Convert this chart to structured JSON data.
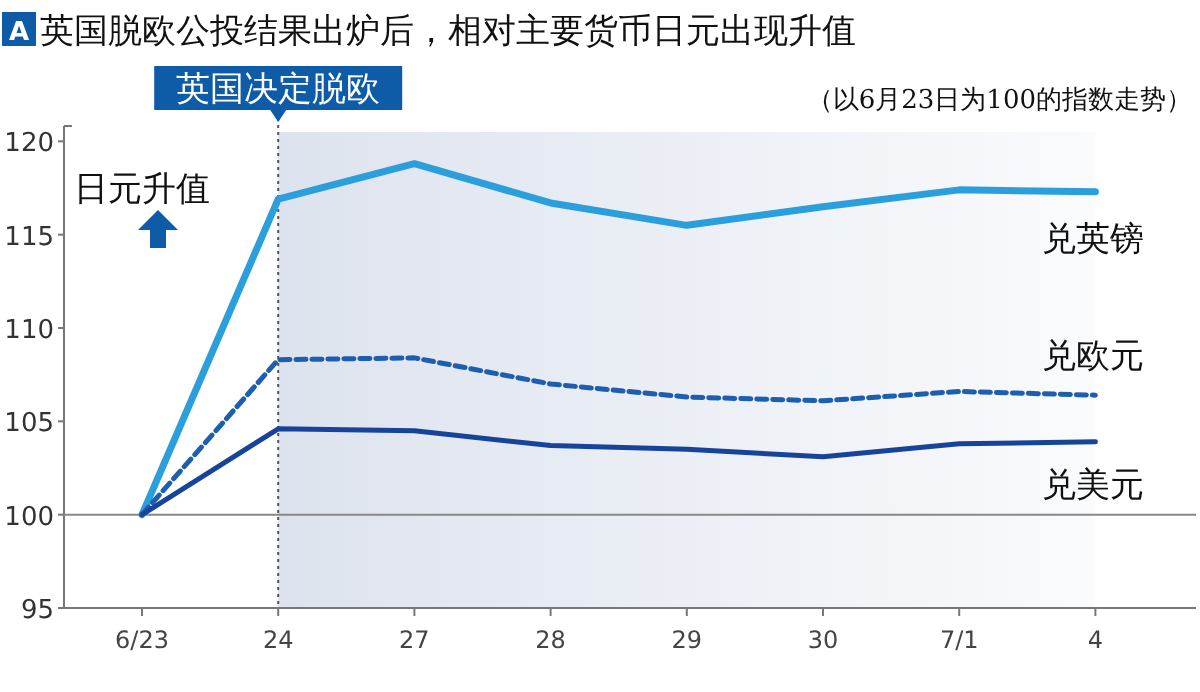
{
  "chart_data": {
    "type": "line",
    "title": "英国脱欧公投结果出炉后，相对主要货币日元出现升值",
    "subtitle": "（以6月23日为100的指数走势）",
    "categories": [
      "6/23",
      "24",
      "27",
      "28",
      "29",
      "30",
      "7/1",
      "4"
    ],
    "series": [
      {
        "name": "兑英镑",
        "color": "#2a9fdc",
        "line_style": "solid",
        "values": [
          100,
          116.9,
          118.8,
          116.7,
          115.5,
          116.5,
          117.4,
          117.3
        ]
      },
      {
        "name": "兑欧元",
        "color": "#1e5eb0",
        "line_style": "dashed",
        "values": [
          100,
          108.3,
          108.4,
          107.0,
          106.3,
          106.1,
          106.6,
          106.4
        ]
      },
      {
        "name": "兑美元",
        "color": "#17449a",
        "line_style": "solid",
        "values": [
          100,
          104.6,
          104.5,
          103.7,
          103.5,
          103.1,
          103.8,
          103.9
        ]
      }
    ],
    "ylim": [
      95,
      120.5
    ],
    "yticks": [
      95,
      100,
      105,
      110,
      115,
      120
    ],
    "grid": false,
    "legend": false,
    "marker": "none",
    "ref_lines": [
      {
        "axis": "y",
        "value": 100,
        "color": "#888888",
        "line_style": "solid"
      },
      {
        "axis": "x",
        "value": "24",
        "label": "英国决定脱欧",
        "color": "#555555",
        "line_style": "dotted"
      }
    ],
    "bands": [
      {
        "axis": "x",
        "from": "24",
        "to": "4",
        "color": "#dde3ee"
      }
    ],
    "annotations": [
      "A",
      "日元升值"
    ]
  }
}
